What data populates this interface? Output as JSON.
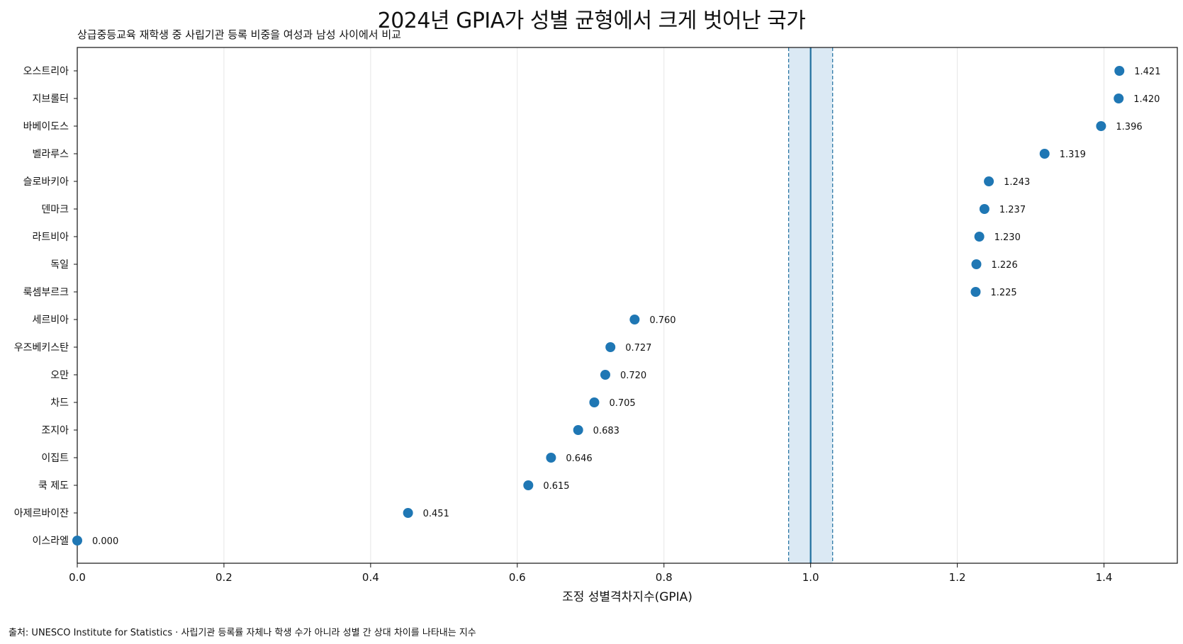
{
  "title": "2024년 GPIA가 성별 균형에서 크게 벗어난 국가",
  "subtitle": "상급중등교육 재학생 중 사립기관 등록 비중을 여성과 남성 사이에서 비교",
  "source": "출처: UNESCO Institute for Statistics · 사립기관 등록률 자체나 학생 수가 아니라 성별 간 상대 차이를 나타내는 지수",
  "colors": {
    "point": "#1f77b4",
    "parity_line": "#1f6f9f",
    "parity_band": "#dbe9f4",
    "grid": "#e6e6e6"
  },
  "chart_data": {
    "type": "scatter",
    "title": "2024년 GPIA가 성별 균형에서 크게 벗어난 국가",
    "subtitle": "상급중등교육 재학생 중 사립기관 등록 비중을 여성과 남성 사이에서 비교",
    "xlabel": "조정 성별격차지수(GPIA)",
    "ylabel": "",
    "xlim": [
      0.0,
      1.5
    ],
    "xticks": [
      0.0,
      0.2,
      0.4,
      0.6,
      0.8,
      1.0,
      1.2,
      1.4
    ],
    "xtick_labels": [
      "0.0",
      "0.2",
      "0.4",
      "0.6",
      "0.8",
      "1.0",
      "1.2",
      "1.4"
    ],
    "grid": "vertical",
    "parity_reference": {
      "line": 1.0,
      "band": [
        0.97,
        1.03
      ]
    },
    "categories": [
      "오스트리아",
      "지브롤터",
      "바베이도스",
      "벨라루스",
      "슬로바키아",
      "덴마크",
      "라트비아",
      "독일",
      "룩셈부르크",
      "세르비아",
      "우즈베키스탄",
      "오만",
      "차드",
      "조지아",
      "이집트",
      "쿡 제도",
      "아제르바이잔",
      "이스라엘"
    ],
    "values": [
      1.421,
      1.42,
      1.396,
      1.319,
      1.243,
      1.237,
      1.23,
      1.226,
      1.225,
      0.76,
      0.727,
      0.72,
      0.705,
      0.683,
      0.646,
      0.615,
      0.451,
      0.0
    ],
    "value_labels": [
      "1.421",
      "1.420",
      "1.396",
      "1.319",
      "1.243",
      "1.237",
      "1.230",
      "1.226",
      "1.225",
      "0.760",
      "0.727",
      "0.720",
      "0.705",
      "0.683",
      "0.646",
      "0.615",
      "0.451",
      "0.000"
    ]
  }
}
